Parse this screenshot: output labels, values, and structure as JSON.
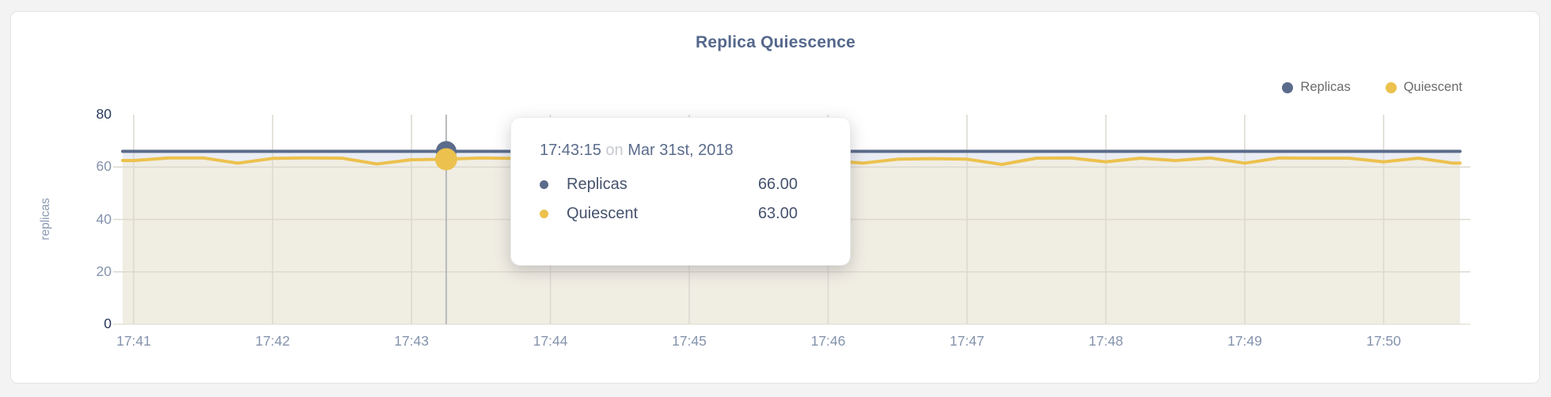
{
  "chart_data": {
    "type": "line",
    "title": "Replica Quiescence",
    "ylabel": "replicas",
    "xlabel": "",
    "ylim": [
      0,
      80
    ],
    "yticks": [
      0,
      20,
      40,
      60,
      80
    ],
    "xticks": [
      "17:41",
      "17:42",
      "17:43",
      "17:44",
      "17:45",
      "17:46",
      "17:47",
      "17:48",
      "17:49",
      "17:50"
    ],
    "grid": true,
    "legend_position": "top-right",
    "x": [
      "17:41:00",
      "17:41:15",
      "17:41:30",
      "17:41:45",
      "17:42:00",
      "17:42:15",
      "17:42:30",
      "17:42:45",
      "17:43:00",
      "17:43:15",
      "17:43:30",
      "17:43:45",
      "17:44:00",
      "17:44:15",
      "17:44:30",
      "17:44:45",
      "17:45:00",
      "17:45:15",
      "17:45:30",
      "17:45:45",
      "17:46:00",
      "17:46:15",
      "17:46:30",
      "17:46:45",
      "17:47:00",
      "17:47:15",
      "17:47:30",
      "17:47:45",
      "17:48:00",
      "17:48:15",
      "17:48:30",
      "17:48:45",
      "17:49:00",
      "17:49:15",
      "17:49:30",
      "17:49:45",
      "17:50:00",
      "17:50:15",
      "17:50:30"
    ],
    "series": [
      {
        "name": "Replicas",
        "color": "#5b6b8b",
        "fill": "#eaedf4",
        "values": [
          66,
          66,
          66,
          66,
          66,
          66,
          66,
          66,
          66,
          66,
          66,
          66,
          66,
          66,
          66,
          66,
          66,
          66,
          66,
          66,
          66,
          66,
          66,
          66,
          66,
          66,
          66,
          66,
          66,
          66,
          66,
          66,
          66,
          66,
          66,
          66,
          66,
          66,
          66
        ]
      },
      {
        "name": "Quiescent",
        "color": "#ecc14d",
        "fill": "#f0ede3",
        "values": [
          62.5,
          63.5,
          63.5,
          61.5,
          63.3,
          63.5,
          63.4,
          61.2,
          62.8,
          63.0,
          63.5,
          63.3,
          61.8,
          63.2,
          63.4,
          63.4,
          62.0,
          63.0,
          63.4,
          63.3,
          62.5,
          61.5,
          63.0,
          63.2,
          63.0,
          61.0,
          63.4,
          63.5,
          62.0,
          63.4,
          62.5,
          63.5,
          61.5,
          63.5,
          63.4,
          63.4,
          62.0,
          63.4,
          61.5
        ]
      }
    ]
  },
  "tooltip": {
    "time": "17:43:15",
    "conjunction": "on",
    "date": "Mar 31st, 2018",
    "hover_time": "17:43:15",
    "rows": [
      {
        "label": "Replicas",
        "value": "66.00",
        "color": "#5b6b8b"
      },
      {
        "label": "Quiescent",
        "value": "63.00",
        "color": "#ecc14d"
      }
    ]
  },
  "colors": {
    "title": "#55688c",
    "axis_tick": "#8493ad",
    "axis_tick_end": "#27375a",
    "gridline": "#dbd8d0",
    "crosshair": "#b6b9bc",
    "card_background": "#ffffff",
    "page_background": "#f3f3f4"
  }
}
